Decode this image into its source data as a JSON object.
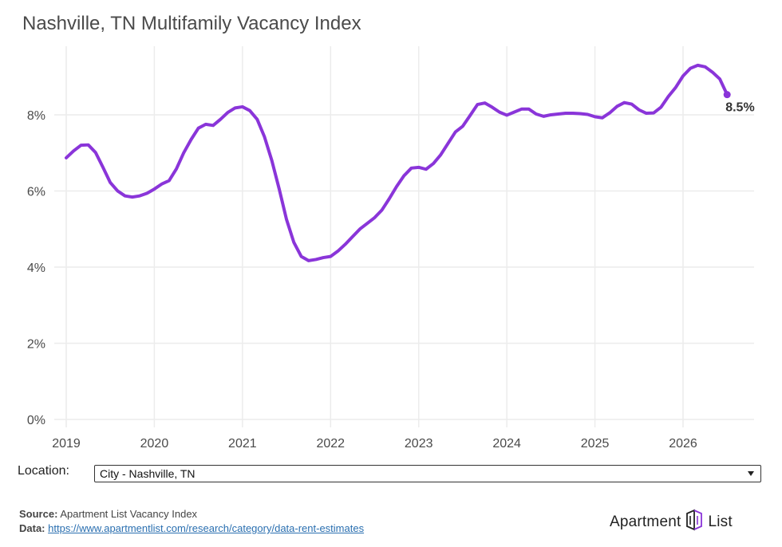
{
  "title": "Nashville, TN Multifamily Vacancy Index",
  "location": {
    "label": "Location:",
    "selected": "City - Nashville, TN"
  },
  "footer": {
    "source_label": "Source:",
    "source_text": "Apartment List Vacancy Index",
    "data_label": "Data:",
    "data_link": "https://www.apartmentlist.com/research/category/data-rent-estimates"
  },
  "logo": {
    "left_text": "Apartment",
    "right_text": "List"
  },
  "colors": {
    "line": "#8a35d9",
    "grid": "#ececec",
    "text": "#4a4a4a"
  },
  "chart_data": {
    "type": "line",
    "title": "Nashville, TN Multifamily Vacancy Index",
    "xlabel": "",
    "ylabel": "",
    "xlim": [
      2018.9,
      2026.9
    ],
    "ylim": [
      0,
      9.8
    ],
    "x_ticks": [
      2019,
      2020,
      2021,
      2022,
      2023,
      2024,
      2025,
      2026
    ],
    "x_tick_labels": [
      "2019",
      "2020",
      "2021",
      "2022",
      "2023",
      "2024",
      "2025",
      "2026"
    ],
    "y_ticks": [
      0,
      2,
      4,
      6,
      8
    ],
    "y_tick_labels": [
      "0%",
      "2%",
      "4%",
      "6%",
      "8%"
    ],
    "grid": true,
    "end_label": "8.5%",
    "series": [
      {
        "x": [
          2019.0,
          2019.083,
          2019.167,
          2019.25,
          2019.333,
          2019.417,
          2019.5,
          2019.583,
          2019.667,
          2019.75,
          2019.833,
          2019.917,
          2020.0,
          2020.083,
          2020.167,
          2020.25,
          2020.333,
          2020.417,
          2020.5,
          2020.583,
          2020.667,
          2020.75,
          2020.833,
          2020.917,
          2021.0,
          2021.083,
          2021.167,
          2021.25,
          2021.333,
          2021.417,
          2021.5,
          2021.583,
          2021.667,
          2021.75,
          2021.833,
          2021.917,
          2022.0,
          2022.083,
          2022.167,
          2022.25,
          2022.333,
          2022.417,
          2022.5,
          2022.583,
          2022.667,
          2022.75,
          2022.833,
          2022.917,
          2023.0,
          2023.083,
          2023.167,
          2023.25,
          2023.333,
          2023.417,
          2023.5,
          2023.583,
          2023.667,
          2023.75,
          2023.833,
          2023.917,
          2024.0,
          2024.083,
          2024.167,
          2024.25,
          2024.333,
          2024.417,
          2024.5,
          2024.583,
          2024.667,
          2024.75,
          2024.833,
          2024.917,
          2025.0,
          2025.083,
          2025.167,
          2025.25,
          2025.333,
          2025.417,
          2025.5,
          2025.583,
          2025.667,
          2025.75,
          2025.833,
          2025.917,
          2026.0,
          2026.083,
          2026.167,
          2026.25,
          2026.333,
          2026.417,
          2026.5
        ],
        "values": [
          6.87,
          7.05,
          7.2,
          7.21,
          7.01,
          6.62,
          6.22,
          6.0,
          5.87,
          5.84,
          5.87,
          5.94,
          6.05,
          6.18,
          6.27,
          6.58,
          7.0,
          7.35,
          7.65,
          7.75,
          7.72,
          7.88,
          8.06,
          8.18,
          8.21,
          8.11,
          7.88,
          7.42,
          6.8,
          6.05,
          5.25,
          4.65,
          4.28,
          4.17,
          4.2,
          4.25,
          4.28,
          4.42,
          4.6,
          4.8,
          5.0,
          5.15,
          5.3,
          5.5,
          5.8,
          6.12,
          6.4,
          6.6,
          6.62,
          6.57,
          6.72,
          6.95,
          7.25,
          7.55,
          7.7,
          7.98,
          8.27,
          8.31,
          8.2,
          8.07,
          7.99,
          8.07,
          8.15,
          8.15,
          8.02,
          7.96,
          8.0,
          8.02,
          8.04,
          8.04,
          8.03,
          8.01,
          7.95,
          7.92,
          8.05,
          8.22,
          8.32,
          8.28,
          8.13,
          8.04,
          8.05,
          8.2,
          8.48,
          8.72,
          9.02,
          9.22,
          9.3,
          9.26,
          9.12,
          8.94,
          8.53
        ]
      }
    ]
  }
}
